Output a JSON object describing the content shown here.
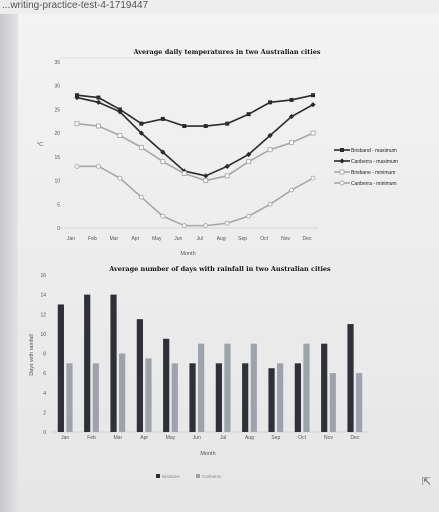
{
  "browser": {
    "url": "...writing-practice-test-4-1719447"
  },
  "chart_data": [
    {
      "type": "line",
      "title": "Average daily temperatures in two Australian cities",
      "xlabel": "Month",
      "ylabel": "°C",
      "ylim": [
        0,
        35
      ],
      "yticks": [
        0,
        5,
        10,
        15,
        20,
        25,
        30,
        35
      ],
      "categories": [
        "Jan",
        "Feb",
        "Mar",
        "Apr",
        "May",
        "Jun",
        "Jul",
        "Aug",
        "Sep",
        "Oct",
        "Nov",
        "Dec"
      ],
      "grid": false,
      "legend": "right",
      "series": [
        {
          "name": "Brisband - maximum",
          "color": "#2b2b2b",
          "marker": "square",
          "values": [
            28,
            27.5,
            25,
            22,
            23,
            21.5,
            21.5,
            22,
            24,
            26.5,
            27,
            28
          ]
        },
        {
          "name": "Canberra - maximum",
          "color": "#2b2b2b",
          "marker": "diamond",
          "values": [
            27.5,
            26.5,
            24.5,
            20,
            16,
            12,
            11,
            13,
            15.5,
            19.5,
            23.5,
            26
          ]
        },
        {
          "name": "Brisbane - minimum",
          "color": "#a8a8a8",
          "marker": "open-square",
          "values": [
            22,
            21.5,
            19.5,
            17,
            14,
            11.5,
            10,
            11,
            14,
            16.5,
            18,
            20
          ]
        },
        {
          "name": "Canberra - minimum",
          "color": "#a8a8a8",
          "marker": "open-circle",
          "values": [
            13,
            13,
            10.5,
            6.5,
            2.5,
            0.5,
            0.5,
            1,
            2.5,
            5,
            8,
            10.5
          ]
        }
      ]
    },
    {
      "type": "bar",
      "title": "Average number of days with rainfall in two Australian cities",
      "xlabel": "Month",
      "ylabel": "Days with rainfall",
      "ylim": [
        0,
        16
      ],
      "yticks": [
        0,
        2,
        4,
        6,
        8,
        10,
        12,
        14,
        16
      ],
      "categories": [
        "Jan",
        "Feb",
        "Mar",
        "Apr",
        "May",
        "Jun",
        "Jul",
        "Aug",
        "Sep",
        "Oct",
        "Nov",
        "Dec"
      ],
      "grid": false,
      "legend": "bottom",
      "series": [
        {
          "name": "Brisbane",
          "color": "#2e3137",
          "values": [
            13,
            14,
            14,
            11.5,
            9.5,
            7,
            7,
            7,
            6.5,
            7,
            9,
            11
          ]
        },
        {
          "name": "Canberra",
          "color": "#9ea2ab",
          "values": [
            7,
            7,
            8,
            7.5,
            7,
            9,
            9,
            9,
            7,
            9,
            6,
            6
          ]
        }
      ]
    }
  ]
}
